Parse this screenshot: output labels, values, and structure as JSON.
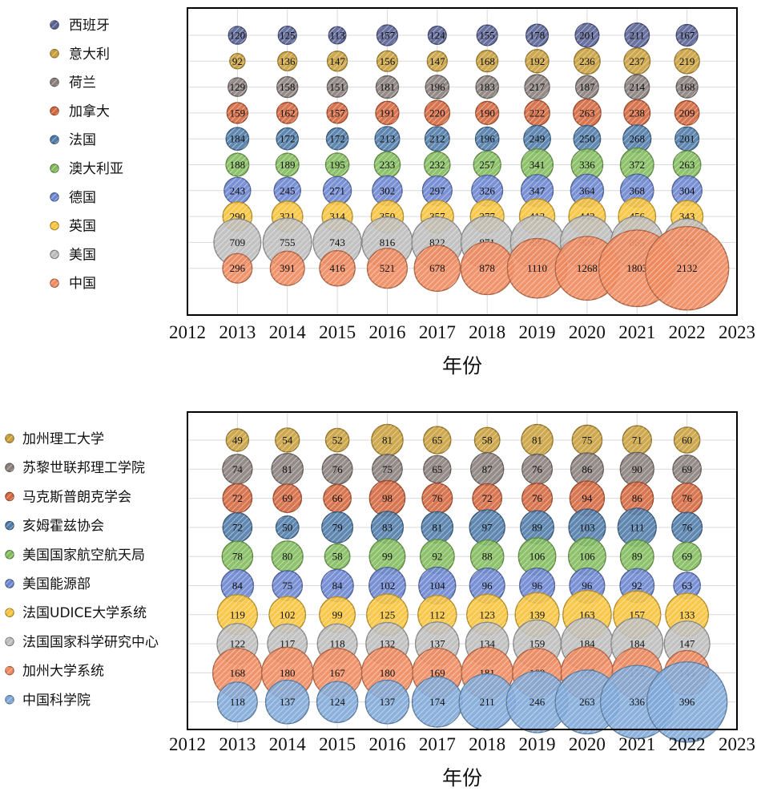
{
  "chart_data": [
    {
      "type": "bubble",
      "xlabel": "年份",
      "x_ticks": [
        "2012",
        "2013",
        "2014",
        "2015",
        "2016",
        "2017",
        "2018",
        "2019",
        "2020",
        "2021",
        "2022",
        "2023"
      ],
      "xlim": [
        2012,
        2023
      ],
      "x": [
        2013,
        2014,
        2015,
        2016,
        2017,
        2018,
        2019,
        2020,
        2021,
        2022
      ],
      "grid": true,
      "legend_position": "left",
      "series": [
        {
          "name": "西班牙",
          "color": "#5a6396",
          "values": [
            120,
            125,
            113,
            157,
            124,
            155,
            178,
            201,
            211,
            167
          ]
        },
        {
          "name": "意大利",
          "color": "#c9a03c",
          "values": [
            92,
            136,
            147,
            156,
            147,
            168,
            192,
            236,
            237,
            219
          ]
        },
        {
          "name": "荷兰",
          "color": "#8a807c",
          "values": [
            129,
            158,
            151,
            181,
            196,
            183,
            217,
            187,
            214,
            168
          ]
        },
        {
          "name": "加拿大",
          "color": "#d4673e",
          "values": [
            159,
            162,
            157,
            191,
            220,
            190,
            222,
            263,
            238,
            209
          ]
        },
        {
          "name": "法国",
          "color": "#4f7ba8",
          "values": [
            184,
            172,
            172,
            213,
            212,
            196,
            249,
            250,
            268,
            201
          ]
        },
        {
          "name": "澳大利亚",
          "color": "#82bb5c",
          "values": [
            188,
            189,
            195,
            233,
            232,
            257,
            341,
            336,
            372,
            263
          ]
        },
        {
          "name": "德国",
          "color": "#6c86d0",
          "values": [
            243,
            245,
            271,
            302,
            297,
            326,
            347,
            364,
            368,
            304
          ]
        },
        {
          "name": "英国",
          "color": "#f7c33a",
          "values": [
            290,
            321,
            314,
            350,
            357,
            377,
            413,
            442,
            456,
            343
          ]
        },
        {
          "name": "美国",
          "color": "#bdbdbd",
          "values": [
            709,
            755,
            743,
            816,
            822,
            871,
            899,
            904,
            865,
            715
          ]
        },
        {
          "name": "中国",
          "color": "#ef8a5e",
          "values": [
            296,
            391,
            416,
            521,
            678,
            878,
            1110,
            1268,
            1803,
            2132
          ]
        }
      ]
    },
    {
      "type": "bubble",
      "xlabel": "年份",
      "x_ticks": [
        "2012",
        "2013",
        "2014",
        "2015",
        "2016",
        "2017",
        "2018",
        "2019",
        "2020",
        "2021",
        "2022",
        "2023"
      ],
      "xlim": [
        2012,
        2023
      ],
      "x": [
        2013,
        2014,
        2015,
        2016,
        2017,
        2018,
        2019,
        2020,
        2021,
        2022
      ],
      "grid": true,
      "legend_position": "left",
      "series": [
        {
          "name": "加州理工大学",
          "color": "#c9a03c",
          "values": [
            49,
            54,
            52,
            81,
            65,
            58,
            81,
            75,
            71,
            60
          ]
        },
        {
          "name": "苏黎世联邦理工学院",
          "color": "#8a807c",
          "values": [
            74,
            81,
            76,
            75,
            65,
            87,
            76,
            86,
            90,
            69
          ]
        },
        {
          "name": "马克斯普朗克学会",
          "color": "#d4673e",
          "values": [
            72,
            69,
            66,
            98,
            76,
            72,
            76,
            94,
            86,
            76
          ]
        },
        {
          "name": "亥姆霍兹协会",
          "color": "#4f7ba8",
          "values": [
            72,
            50,
            79,
            83,
            81,
            97,
            89,
            103,
            111,
            76
          ]
        },
        {
          "name": "美国国家航空航天局",
          "color": "#82bb5c",
          "values": [
            78,
            80,
            58,
            99,
            92,
            88,
            106,
            106,
            89,
            69
          ]
        },
        {
          "name": "美国能源部",
          "color": "#6c86d0",
          "values": [
            84,
            75,
            84,
            102,
            104,
            96,
            96,
            96,
            92,
            63
          ]
        },
        {
          "name": "法国UDICE大学系统",
          "color": "#f7c33a",
          "values": [
            119,
            102,
            99,
            125,
            112,
            123,
            139,
            163,
            157,
            133
          ]
        },
        {
          "name": "法国国家科学研究中心",
          "color": "#bdbdbd",
          "values": [
            122,
            117,
            118,
            132,
            137,
            134,
            159,
            184,
            184,
            147
          ]
        },
        {
          "name": "加州大学系统",
          "color": "#ef8a5e",
          "values": [
            168,
            180,
            167,
            180,
            169,
            181,
            168,
            186,
            172,
            143
          ]
        },
        {
          "name": "中国科学院",
          "color": "#7fa9d8",
          "values": [
            118,
            137,
            124,
            137,
            174,
            211,
            246,
            263,
            336,
            396
          ]
        }
      ]
    }
  ]
}
